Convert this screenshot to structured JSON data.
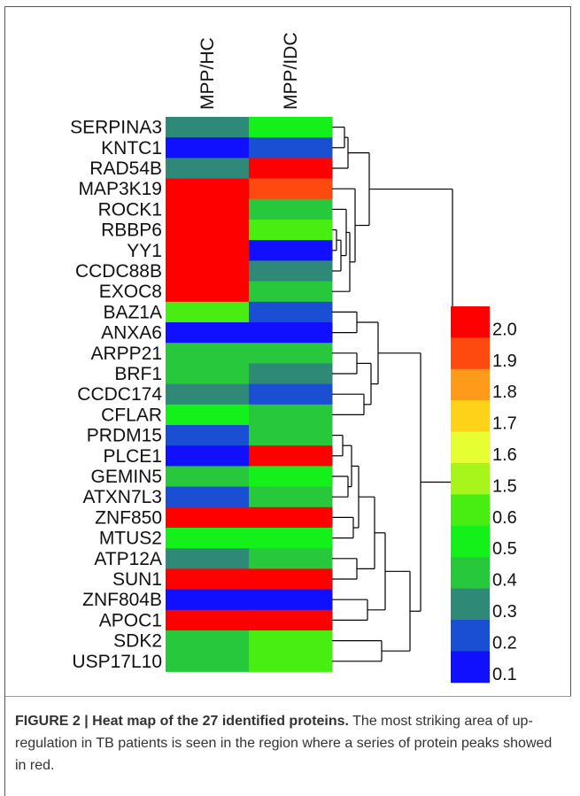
{
  "chart_data": {
    "type": "heatmap",
    "columns": [
      "MPP/HC",
      "MPP/IDC"
    ],
    "rows": [
      "SERPINA3",
      "KNTC1",
      "RAD54B",
      "MAP3K19",
      "ROCK1",
      "RBBP6",
      "YY1",
      "CCDC88B",
      "EXOC8",
      "BAZ1A",
      "ANXA6",
      "ARPP21",
      "BRF1",
      "CCDC174",
      "CFLAR",
      "PRDM15",
      "PLCE1",
      "GEMIN5",
      "ATXN7L3",
      "ZNF850",
      "MTUS2",
      "ATP12A",
      "SUN1",
      "ZNF804B",
      "APOC1",
      "SDK2",
      "USP17L10"
    ],
    "values": [
      [
        0.3,
        0.5
      ],
      [
        0.1,
        0.2
      ],
      [
        0.3,
        2.0
      ],
      [
        2.0,
        1.9
      ],
      [
        2.0,
        0.4
      ],
      [
        2.0,
        0.6
      ],
      [
        2.0,
        0.1
      ],
      [
        2.0,
        0.3
      ],
      [
        2.0,
        0.4
      ],
      [
        0.6,
        0.2
      ],
      [
        0.1,
        0.1
      ],
      [
        0.4,
        0.4
      ],
      [
        0.4,
        0.3
      ],
      [
        0.3,
        0.2
      ],
      [
        0.5,
        0.4
      ],
      [
        0.2,
        0.4
      ],
      [
        0.1,
        2.0
      ],
      [
        0.4,
        0.5
      ],
      [
        0.2,
        0.4
      ],
      [
        2.0,
        2.0
      ],
      [
        0.5,
        0.5
      ],
      [
        0.3,
        0.4
      ],
      [
        2.0,
        2.0
      ],
      [
        0.1,
        0.1
      ],
      [
        2.0,
        2.0
      ],
      [
        0.4,
        0.6
      ],
      [
        0.4,
        0.6
      ]
    ],
    "legend": {
      "labels": [
        "2.0",
        "1.9",
        "1.8",
        "1.7",
        "1.6",
        "1.5",
        "0.6",
        "0.5",
        "0.4",
        "0.3",
        "0.2",
        "0.1"
      ],
      "colors": [
        "#ff0000",
        "#ff4a0f",
        "#ff9a1a",
        "#ffd21a",
        "#e6ff33",
        "#a8f51c",
        "#48ee12",
        "#14f019",
        "#28c83c",
        "#2e8a76",
        "#1a4fd4",
        "#1010ff"
      ],
      "position": "right"
    },
    "dendrogram": "right"
  },
  "caption": {
    "label": "FIGURE 2 | Heat map of the 27 identified proteins.",
    "text": " The most striking area of up-regulation in TB patients is seen in the region where a series of protein peaks showed in red."
  }
}
